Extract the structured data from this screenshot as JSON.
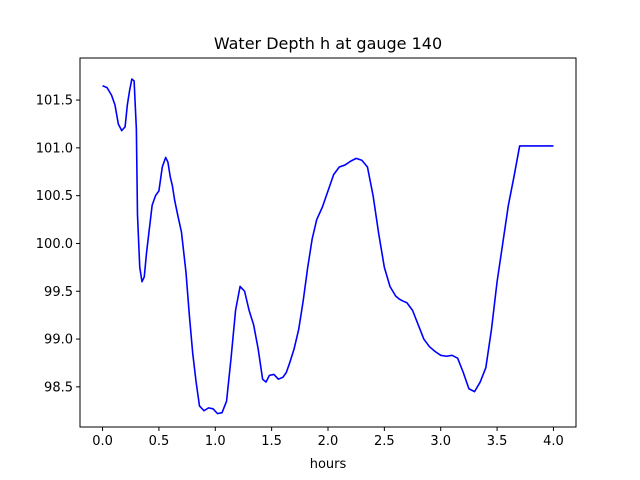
{
  "chart_data": {
    "type": "line",
    "title": "Water Depth h at gauge 140",
    "xlabel": "hours",
    "ylabel": "",
    "xlim": [
      -0.2,
      4.2
    ],
    "ylim": [
      98.08,
      101.94
    ],
    "xticks": [
      0.0,
      0.5,
      1.0,
      1.5,
      2.0,
      2.5,
      3.0,
      3.5,
      4.0
    ],
    "xtick_labels": [
      "0.0",
      "0.5",
      "1.0",
      "1.5",
      "2.0",
      "2.5",
      "3.0",
      "3.5",
      "4.0"
    ],
    "yticks": [
      98.5,
      99.0,
      99.5,
      100.0,
      100.5,
      101.0,
      101.5
    ],
    "ytick_labels": [
      "98.5",
      "99.0",
      "99.5",
      "100.0",
      "100.5",
      "101.0",
      "101.5"
    ],
    "grid": false,
    "legend": false,
    "series": [
      {
        "color": "#0000ff",
        "x": [
          0.0,
          0.04,
          0.08,
          0.11,
          0.14,
          0.17,
          0.2,
          0.22,
          0.24,
          0.26,
          0.28,
          0.3,
          0.31,
          0.33,
          0.35,
          0.37,
          0.39,
          0.41,
          0.44,
          0.47,
          0.5,
          0.53,
          0.56,
          0.58,
          0.6,
          0.62,
          0.64,
          0.67,
          0.7,
          0.74,
          0.77,
          0.8,
          0.83,
          0.86,
          0.9,
          0.94,
          0.98,
          1.02,
          1.06,
          1.1,
          1.14,
          1.18,
          1.22,
          1.26,
          1.3,
          1.34,
          1.38,
          1.42,
          1.45,
          1.48,
          1.52,
          1.56,
          1.6,
          1.63,
          1.66,
          1.7,
          1.74,
          1.78,
          1.82,
          1.86,
          1.9,
          1.95,
          2.0,
          2.05,
          2.1,
          2.15,
          2.2,
          2.25,
          2.3,
          2.35,
          2.4,
          2.45,
          2.5,
          2.55,
          2.6,
          2.63,
          2.66,
          2.7,
          2.75,
          2.8,
          2.85,
          2.9,
          2.95,
          3.0,
          3.05,
          3.1,
          3.15,
          3.2,
          3.25,
          3.3,
          3.35,
          3.4,
          3.45,
          3.5,
          3.55,
          3.6,
          3.65,
          3.7,
          3.75,
          3.8,
          3.85,
          3.9,
          3.95,
          4.0
        ],
        "y": [
          101.65,
          101.63,
          101.55,
          101.45,
          101.25,
          101.18,
          101.22,
          101.45,
          101.6,
          101.72,
          101.7,
          101.2,
          100.3,
          99.75,
          99.6,
          99.65,
          99.9,
          100.1,
          100.4,
          100.5,
          100.55,
          100.8,
          100.9,
          100.85,
          100.7,
          100.6,
          100.45,
          100.28,
          100.12,
          99.7,
          99.25,
          98.85,
          98.55,
          98.3,
          98.25,
          98.28,
          98.27,
          98.22,
          98.23,
          98.35,
          98.8,
          99.3,
          99.55,
          99.5,
          99.3,
          99.15,
          98.9,
          98.58,
          98.55,
          98.62,
          98.63,
          98.58,
          98.6,
          98.65,
          98.75,
          98.9,
          99.1,
          99.4,
          99.75,
          100.05,
          100.25,
          100.38,
          100.55,
          100.72,
          100.8,
          100.82,
          100.86,
          100.89,
          100.87,
          100.8,
          100.5,
          100.1,
          99.75,
          99.55,
          99.45,
          99.42,
          99.4,
          99.38,
          99.3,
          99.15,
          99.0,
          98.92,
          98.87,
          98.83,
          98.82,
          98.83,
          98.8,
          98.65,
          98.48,
          98.45,
          98.55,
          98.7,
          99.1,
          99.6,
          100.0,
          100.4,
          100.7,
          101.02,
          101.02,
          101.02,
          101.02,
          101.02,
          101.02,
          101.02
        ]
      }
    ]
  }
}
